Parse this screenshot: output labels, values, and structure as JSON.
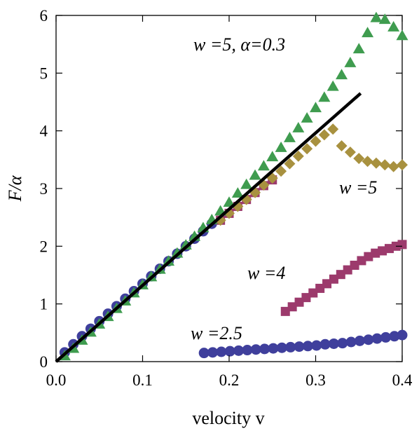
{
  "chart_data": {
    "type": "scatter",
    "title": "",
    "xlabel": "velocity v",
    "ylabel": "F/α",
    "xlim": [
      0,
      0.4
    ],
    "ylim": [
      0,
      6
    ],
    "xticks": [
      "0.0",
      "0.1",
      "0.2",
      "0.3",
      "0.4"
    ],
    "yticks": [
      "0",
      "1",
      "2",
      "3",
      "4",
      "5",
      "6"
    ],
    "grid": false,
    "annotations": [
      "w =5, α=0.3",
      "w =5",
      "w =4",
      "w =2.5"
    ],
    "series": [
      {
        "marker": "circle",
        "color": "#3f3f9c",
        "label": "w =2.5",
        "points": [
          [
            0.01,
            0.16
          ],
          [
            0.02,
            0.3
          ],
          [
            0.03,
            0.44
          ],
          [
            0.04,
            0.57
          ],
          [
            0.05,
            0.7
          ],
          [
            0.06,
            0.83
          ],
          [
            0.07,
            0.96
          ],
          [
            0.08,
            1.09
          ],
          [
            0.09,
            1.22
          ],
          [
            0.1,
            1.35
          ],
          [
            0.11,
            1.48
          ],
          [
            0.12,
            1.61
          ],
          [
            0.13,
            1.74
          ],
          [
            0.14,
            1.87
          ],
          [
            0.15,
            2.0
          ],
          [
            0.16,
            2.13
          ],
          [
            0.17,
            2.26
          ],
          [
            0.18,
            2.39
          ],
          [
            0.171,
            0.15
          ],
          [
            0.181,
            0.16
          ],
          [
            0.191,
            0.17
          ],
          [
            0.201,
            0.18
          ],
          [
            0.211,
            0.19
          ],
          [
            0.221,
            0.2
          ],
          [
            0.231,
            0.21
          ],
          [
            0.241,
            0.22
          ],
          [
            0.251,
            0.23
          ],
          [
            0.261,
            0.24
          ],
          [
            0.271,
            0.25
          ],
          [
            0.281,
            0.26
          ],
          [
            0.291,
            0.27
          ],
          [
            0.301,
            0.28
          ],
          [
            0.311,
            0.3
          ],
          [
            0.321,
            0.31
          ],
          [
            0.331,
            0.32
          ],
          [
            0.341,
            0.34
          ],
          [
            0.351,
            0.36
          ],
          [
            0.361,
            0.38
          ],
          [
            0.371,
            0.4
          ],
          [
            0.381,
            0.42
          ],
          [
            0.391,
            0.44
          ],
          [
            0.4,
            0.46
          ]
        ]
      },
      {
        "marker": "square",
        "color": "#9c3a6c",
        "label": "w =4",
        "points": [
          [
            0.19,
            2.45
          ],
          [
            0.2,
            2.57
          ],
          [
            0.21,
            2.69
          ],
          [
            0.22,
            2.81
          ],
          [
            0.23,
            2.93
          ],
          [
            0.24,
            3.05
          ],
          [
            0.25,
            3.15
          ],
          [
            0.265,
            0.87
          ],
          [
            0.273,
            0.95
          ],
          [
            0.281,
            1.03
          ],
          [
            0.289,
            1.11
          ],
          [
            0.297,
            1.19
          ],
          [
            0.305,
            1.27
          ],
          [
            0.313,
            1.35
          ],
          [
            0.321,
            1.43
          ],
          [
            0.329,
            1.51
          ],
          [
            0.337,
            1.59
          ],
          [
            0.345,
            1.67
          ],
          [
            0.353,
            1.75
          ],
          [
            0.361,
            1.82
          ],
          [
            0.369,
            1.88
          ],
          [
            0.377,
            1.92
          ],
          [
            0.385,
            1.96
          ],
          [
            0.393,
            2.0
          ],
          [
            0.4,
            2.03
          ]
        ]
      },
      {
        "marker": "diamond",
        "color": "#a8913f",
        "label": "w =5",
        "points": [
          [
            0.19,
            2.45
          ],
          [
            0.2,
            2.57
          ],
          [
            0.21,
            2.69
          ],
          [
            0.22,
            2.81
          ],
          [
            0.23,
            2.93
          ],
          [
            0.24,
            3.06
          ],
          [
            0.25,
            3.18
          ],
          [
            0.26,
            3.3
          ],
          [
            0.27,
            3.43
          ],
          [
            0.28,
            3.56
          ],
          [
            0.29,
            3.69
          ],
          [
            0.3,
            3.82
          ],
          [
            0.31,
            3.93
          ],
          [
            0.32,
            4.03
          ],
          [
            0.33,
            3.74
          ],
          [
            0.34,
            3.63
          ],
          [
            0.35,
            3.52
          ],
          [
            0.36,
            3.47
          ],
          [
            0.37,
            3.44
          ],
          [
            0.38,
            3.41
          ],
          [
            0.39,
            3.38
          ],
          [
            0.4,
            3.41
          ]
        ]
      },
      {
        "marker": "triangle",
        "color": "#3f9c4f",
        "label": "w =5, α=0.3",
        "points": [
          [
            0.01,
            0.1
          ],
          [
            0.02,
            0.23
          ],
          [
            0.03,
            0.37
          ],
          [
            0.04,
            0.51
          ],
          [
            0.05,
            0.65
          ],
          [
            0.06,
            0.78
          ],
          [
            0.07,
            0.92
          ],
          [
            0.08,
            1.05
          ],
          [
            0.09,
            1.19
          ],
          [
            0.1,
            1.33
          ],
          [
            0.11,
            1.47
          ],
          [
            0.12,
            1.6
          ],
          [
            0.13,
            1.74
          ],
          [
            0.14,
            1.88
          ],
          [
            0.15,
            2.02
          ],
          [
            0.16,
            2.17
          ],
          [
            0.17,
            2.32
          ],
          [
            0.18,
            2.46
          ],
          [
            0.19,
            2.61
          ],
          [
            0.2,
            2.76
          ],
          [
            0.21,
            2.92
          ],
          [
            0.22,
            3.07
          ],
          [
            0.23,
            3.23
          ],
          [
            0.24,
            3.39
          ],
          [
            0.25,
            3.55
          ],
          [
            0.26,
            3.71
          ],
          [
            0.27,
            3.88
          ],
          [
            0.28,
            4.05
          ],
          [
            0.29,
            4.22
          ],
          [
            0.3,
            4.4
          ],
          [
            0.31,
            4.58
          ],
          [
            0.32,
            4.77
          ],
          [
            0.33,
            4.97
          ],
          [
            0.34,
            5.18
          ],
          [
            0.35,
            5.42
          ],
          [
            0.36,
            5.7
          ],
          [
            0.37,
            5.96
          ],
          [
            0.38,
            5.93
          ],
          [
            0.39,
            5.8
          ],
          [
            0.4,
            5.65
          ]
        ]
      }
    ],
    "line": {
      "color": "#000000",
      "points": [
        [
          0.0,
          0.0
        ],
        [
          0.352,
          4.65
        ]
      ]
    }
  }
}
